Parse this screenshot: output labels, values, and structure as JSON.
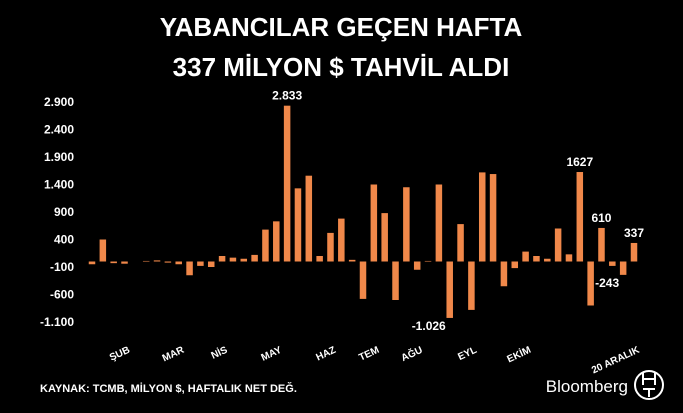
{
  "chart_data": {
    "type": "bar",
    "title": [
      "YABANCILAR GEÇEN HAFTA",
      "337 MİLYON $ TAHVİL ALDI"
    ],
    "source": "KAYNAK: TCMB, MİLYON $, HAFTALIK NET DEĞ.",
    "brand": "Bloomberg",
    "color": "#f0884a",
    "categories": [
      null,
      null,
      null,
      "ŞUB",
      null,
      null,
      null,
      null,
      "MAR",
      null,
      null,
      null,
      "NİS",
      null,
      null,
      null,
      null,
      "MAY",
      null,
      null,
      null,
      null,
      "HAZ",
      null,
      null,
      null,
      "TEM",
      null,
      null,
      null,
      "AĞU",
      null,
      null,
      null,
      null,
      "EYL",
      null,
      null,
      null,
      null,
      "EKİM",
      null,
      null,
      null,
      null,
      null,
      null,
      null,
      null,
      null,
      "20 ARALIK"
    ],
    "values": [
      -50,
      400,
      -30,
      -40,
      0,
      10,
      20,
      -20,
      -50,
      -250,
      -80,
      -100,
      100,
      70,
      50,
      120,
      580,
      730,
      2833,
      1330,
      1560,
      100,
      520,
      780,
      30,
      -680,
      1400,
      880,
      -700,
      1350,
      -150,
      10,
      1400,
      -1026,
      680,
      -880,
      1620,
      1590,
      -450,
      -120,
      180,
      100,
      50,
      600,
      130,
      1627,
      -800,
      610,
      -80,
      -243,
      337
    ],
    "value_labels": [
      null,
      null,
      null,
      null,
      null,
      null,
      null,
      null,
      null,
      null,
      null,
      null,
      null,
      null,
      null,
      null,
      null,
      null,
      "2.833",
      null,
      null,
      null,
      null,
      null,
      null,
      null,
      null,
      null,
      null,
      null,
      null,
      null,
      null,
      "-1.026",
      null,
      null,
      null,
      null,
      null,
      null,
      null,
      null,
      null,
      null,
      null,
      "1627",
      null,
      "610",
      null,
      "-243",
      "337"
    ],
    "ylim": [
      -1100,
      2900
    ],
    "yticks": [
      {
        "value": 2900,
        "label": "2.900"
      },
      {
        "value": 2400,
        "label": "2.400"
      },
      {
        "value": 1900,
        "label": "1.900"
      },
      {
        "value": 1400,
        "label": "1.400"
      },
      900,
      400,
      -100,
      -600,
      {
        "value": -1100,
        "label": "-1.100"
      }
    ],
    "grid": false
  }
}
